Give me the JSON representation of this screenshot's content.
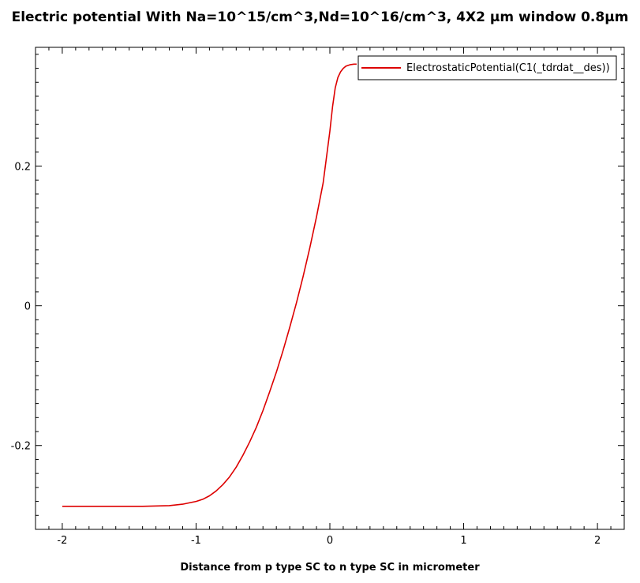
{
  "chart_data": {
    "type": "line",
    "title": "Electric potential With Na=10^15/cm^3,Nd=10^16/cm^3, 4X2 µm window 0.8µm",
    "xlabel": "Distance from p type SC to n type SC in micrometer",
    "ylabel": "",
    "xlim": [
      -2.2,
      2.2
    ],
    "ylim": [
      -0.32,
      0.37
    ],
    "x_ticks": [
      -2,
      -1,
      0,
      1,
      2
    ],
    "x_tick_labels": [
      "-2",
      "-1",
      "0",
      "1",
      "2"
    ],
    "y_ticks": [
      -0.2,
      0,
      0.2
    ],
    "y_tick_labels": [
      "-0.2",
      "0",
      "0.2"
    ],
    "grid": false,
    "legend_position": "top-right",
    "series": [
      {
        "name": "ElectrostaticPotential(C1(_tdrdat__des))",
        "color": "#dd0000",
        "x": [
          -2.0,
          -1.8,
          -1.6,
          -1.4,
          -1.2,
          -1.1,
          -1.0,
          -0.95,
          -0.9,
          -0.85,
          -0.8,
          -0.75,
          -0.7,
          -0.65,
          -0.6,
          -0.55,
          -0.5,
          -0.45,
          -0.4,
          -0.35,
          -0.3,
          -0.25,
          -0.2,
          -0.15,
          -0.1,
          -0.05,
          0.0,
          0.02,
          0.04,
          0.06,
          0.08,
          0.1,
          0.12,
          0.15,
          0.18,
          0.2
        ],
        "y": [
          -0.287,
          -0.287,
          -0.287,
          -0.287,
          -0.286,
          -0.284,
          -0.28,
          -0.277,
          -0.272,
          -0.265,
          -0.256,
          -0.245,
          -0.231,
          -0.214,
          -0.195,
          -0.174,
          -0.15,
          -0.123,
          -0.095,
          -0.064,
          -0.031,
          0.004,
          0.042,
          0.083,
          0.127,
          0.176,
          0.25,
          0.285,
          0.312,
          0.327,
          0.335,
          0.34,
          0.343,
          0.345,
          0.346,
          0.346
        ]
      }
    ]
  }
}
